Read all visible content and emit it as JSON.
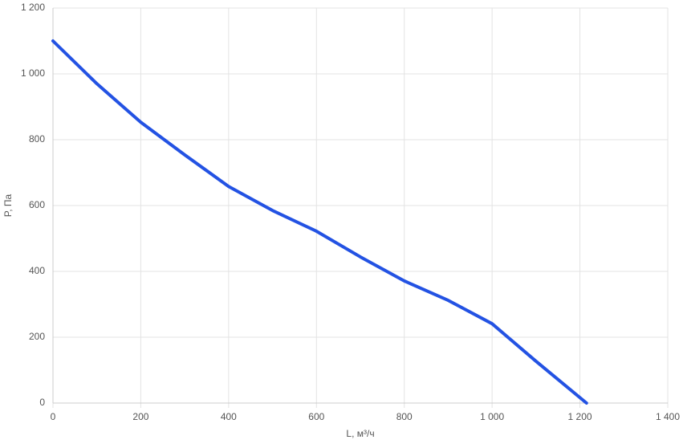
{
  "chart_data": {
    "type": "line",
    "x_label": "L, м³/ч",
    "y_label": "P, Па",
    "x": [
      0,
      100,
      200,
      300,
      400,
      500,
      600,
      700,
      800,
      900,
      1000,
      1100,
      1215
    ],
    "series": [
      {
        "color": "#2352e3",
        "values": [
          1100,
          970,
          853,
          754,
          658,
          585,
          522,
          444,
          371,
          312,
          241,
          127,
          0
        ]
      }
    ],
    "xlim": [
      0,
      1400
    ],
    "xticks": [
      0,
      200,
      400,
      600,
      800,
      {
        "value": 1000,
        "label": "1 000"
      },
      {
        "value": 1200,
        "label": "1 200"
      },
      {
        "value": 1400,
        "label": "1 400"
      }
    ],
    "ylim": [
      0,
      1200
    ],
    "yticks": [
      0,
      200,
      400,
      600,
      800,
      {
        "value": 1000,
        "label": "1 000"
      },
      {
        "value": 1200,
        "label": "1 200"
      }
    ],
    "grid": true
  }
}
